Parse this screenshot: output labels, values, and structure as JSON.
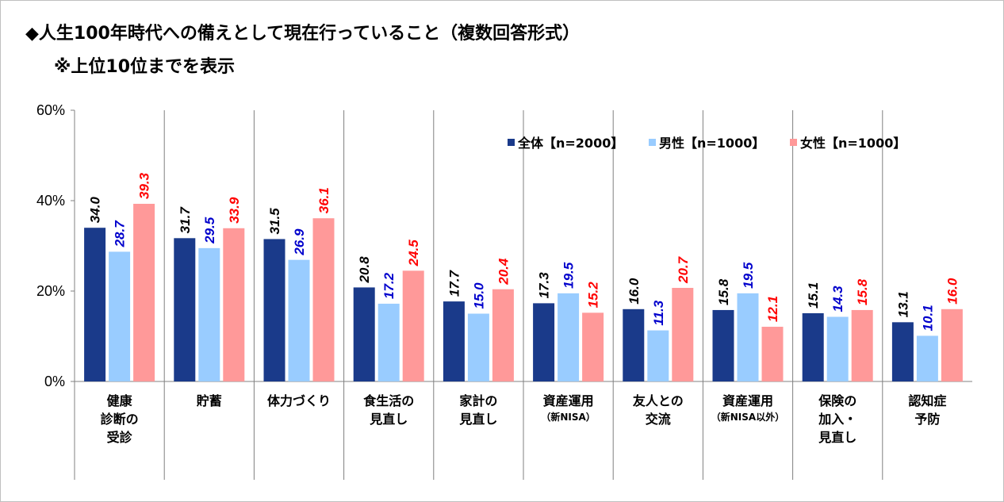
{
  "title_line1": "◆人生100年時代への備えとして現在行っていること（複数回答形式）",
  "title_line2": "※上位10位までを表示",
  "chart_data": {
    "type": "bar",
    "categories": [
      [
        "健康",
        "診断の",
        "受診"
      ],
      [
        "貯蓄"
      ],
      [
        "体力づくり"
      ],
      [
        "食生活の",
        "見直し"
      ],
      [
        "家計の",
        "見直し"
      ],
      [
        "資産運用",
        "（新NISA）"
      ],
      [
        "友人との",
        "交流"
      ],
      [
        "資産運用",
        "（新NISA以外）"
      ],
      [
        "保険の",
        "加入・",
        "見直し"
      ],
      [
        "認知症",
        "予防"
      ]
    ],
    "series": [
      {
        "name": "全体【n=2000】",
        "color": "#1a3a8a",
        "label_color": "#000000",
        "values": [
          34.0,
          31.7,
          31.5,
          20.8,
          17.7,
          17.3,
          16.0,
          15.8,
          15.1,
          13.1
        ]
      },
      {
        "name": "男性【n=1000】",
        "color": "#99ccff",
        "label_color": "#0000cc",
        "values": [
          28.7,
          29.5,
          26.9,
          17.2,
          15.0,
          19.5,
          11.3,
          19.5,
          14.3,
          10.1
        ]
      },
      {
        "name": "女性【n=1000】",
        "color": "#ff9999",
        "label_color": "#ff0000",
        "values": [
          39.3,
          33.9,
          36.1,
          24.5,
          20.4,
          15.2,
          20.7,
          12.1,
          15.8,
          16.0
        ]
      }
    ],
    "yticks": [
      "0%",
      "20%",
      "40%",
      "60%"
    ],
    "ylim": [
      0,
      60
    ],
    "legend_position": "top-right",
    "grid": false
  }
}
